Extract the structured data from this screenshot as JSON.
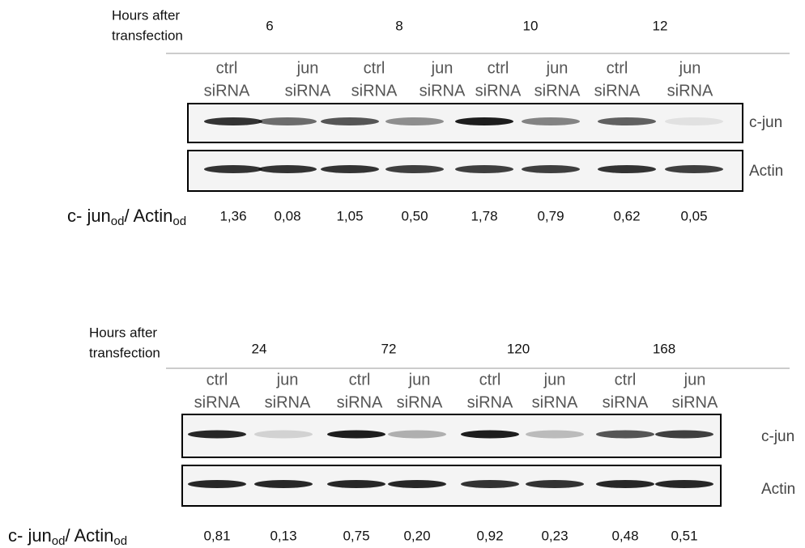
{
  "panels": [
    {
      "header": {
        "label_lines": [
          "Hours after",
          "transfection"
        ],
        "time_points": [
          "6",
          "8",
          "10",
          "12"
        ]
      },
      "lanes": [
        {
          "line1": "ctrl",
          "line2": "siRNA"
        },
        {
          "line1": "jun",
          "line2": "siRNA"
        },
        {
          "line1": "ctrl",
          "line2": "siRNA"
        },
        {
          "line1": "jun",
          "line2": "siRNA"
        },
        {
          "line1": "ctrl",
          "line2": "siRNA"
        },
        {
          "line1": "jun",
          "line2": "siRNA"
        },
        {
          "line1": "ctrl",
          "line2": "siRNA"
        },
        {
          "line1": "jun",
          "line2": "siRNA"
        }
      ],
      "rows": [
        "c-jun",
        "Actin"
      ],
      "ratio_label": {
        "main": "c- jun",
        "sub1": "od",
        "mid": "/ Actin",
        "sub2": "od"
      },
      "ratios": [
        "1,36",
        "0,08",
        "1,05",
        "0,50",
        "1,78",
        "0,79",
        "0,62",
        "0,05"
      ]
    },
    {
      "header": {
        "label_lines": [
          "Hours after",
          "transfection"
        ],
        "time_points": [
          "24",
          "72",
          "120",
          "168"
        ]
      },
      "lanes": [
        {
          "line1": "ctrl",
          "line2": "siRNA"
        },
        {
          "line1": "jun",
          "line2": "siRNA"
        },
        {
          "line1": "ctrl",
          "line2": "siRNA"
        },
        {
          "line1": "jun",
          "line2": "siRNA"
        },
        {
          "line1": "ctrl",
          "line2": "siRNA"
        },
        {
          "line1": "jun",
          "line2": "siRNA"
        },
        {
          "line1": "ctrl",
          "line2": "siRNA"
        },
        {
          "line1": "jun",
          "line2": "siRNA"
        }
      ],
      "rows": [
        "c-jun",
        "Actin"
      ],
      "ratio_label": {
        "main": "c- jun",
        "sub1": "od",
        "mid": "/ Actin",
        "sub2": "od"
      },
      "ratios": [
        "0,81",
        "0,13",
        "0,75",
        "0,20",
        "0,92",
        "0,23",
        "0,48",
        "0,51"
      ]
    }
  ]
}
